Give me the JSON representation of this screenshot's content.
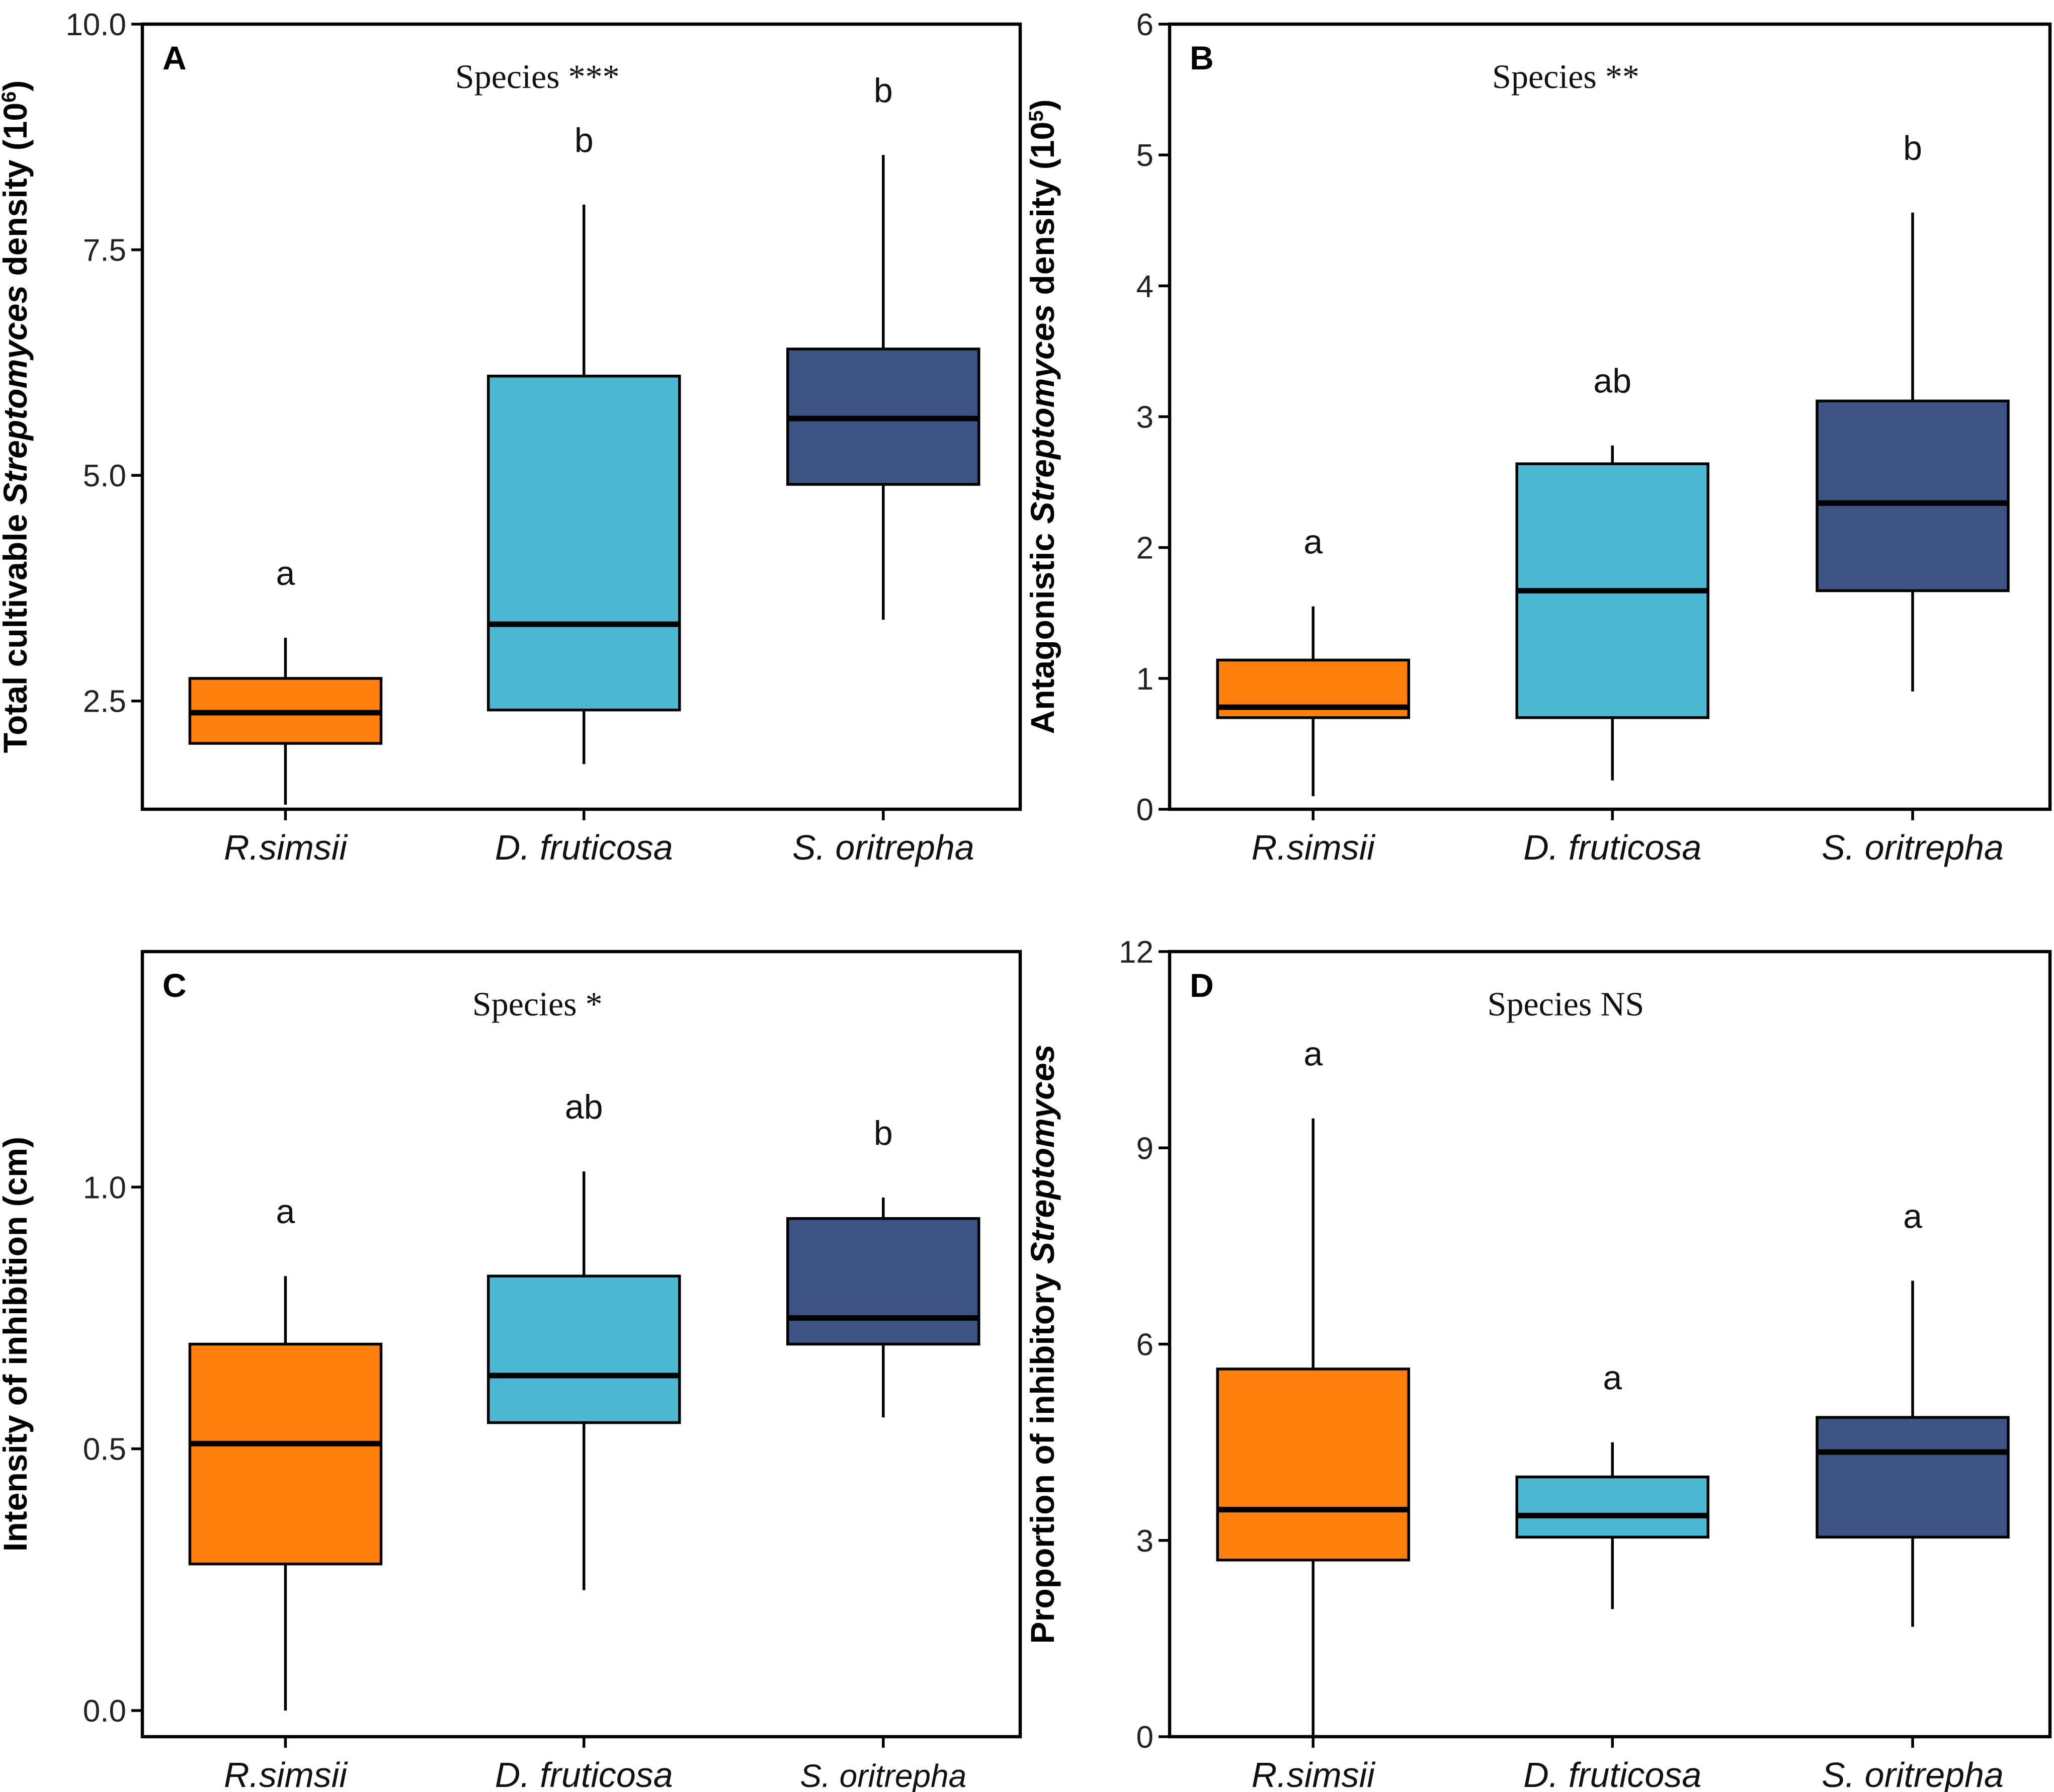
{
  "chart_data": [
    {
      "type": "boxplot",
      "panel": "A",
      "title": "Species ***",
      "ylabel_parts": [
        "Total cultivable ",
        "Streptomyces",
        " density (10",
        "6",
        ")"
      ],
      "ylim": [
        1.3,
        10.0
      ],
      "yticks": [
        {
          "value": 2.5,
          "label": "2.5"
        },
        {
          "value": 5.0,
          "label": "5.0"
        },
        {
          "value": 7.5,
          "label": "7.5"
        },
        {
          "value": 10.0,
          "label": "10.0"
        }
      ],
      "categories": [
        "R.simsii",
        "D. fruticosa",
        "S. oritrepha"
      ],
      "boxes": [
        {
          "category": "R.simsii",
          "min": 1.35,
          "q1": 2.03,
          "median": 2.37,
          "q3": 2.75,
          "max": 3.2,
          "letter": "a",
          "color": "#FF7F0E"
        },
        {
          "category": "D. fruticosa",
          "min": 1.8,
          "q1": 2.4,
          "median": 3.35,
          "q3": 6.1,
          "max": 8.0,
          "letter": "b",
          "color": "#4BB8D4"
        },
        {
          "category": "S. oritrepha",
          "min": 3.4,
          "q1": 4.9,
          "median": 5.63,
          "q3": 6.4,
          "max": 8.55,
          "letter": "b",
          "color": "#3C5384"
        }
      ]
    },
    {
      "type": "boxplot",
      "panel": "B",
      "title": "Species **",
      "ylabel_parts": [
        "Antagonistic ",
        "Streptomyces",
        " density (10",
        "5",
        ")"
      ],
      "ylim": [
        0,
        6
      ],
      "yticks": [
        {
          "value": 0,
          "label": "0"
        },
        {
          "value": 1,
          "label": "1"
        },
        {
          "value": 2,
          "label": "2"
        },
        {
          "value": 3,
          "label": "3"
        },
        {
          "value": 4,
          "label": "4"
        },
        {
          "value": 5,
          "label": "5"
        },
        {
          "value": 6,
          "label": "6"
        }
      ],
      "categories": [
        "R.simsii",
        "D. fruticosa",
        "S. oritrepha"
      ],
      "boxes": [
        {
          "category": "R.simsii",
          "min": 0.1,
          "q1": 0.7,
          "median": 0.78,
          "q3": 1.14,
          "max": 1.55,
          "letter": "a",
          "color": "#FF7F0E"
        },
        {
          "category": "D. fruticosa",
          "min": 0.22,
          "q1": 0.7,
          "median": 1.67,
          "q3": 2.64,
          "max": 2.78,
          "letter": "ab",
          "color": "#4BB8D4"
        },
        {
          "category": "S. oritrepha",
          "min": 0.9,
          "q1": 1.67,
          "median": 2.34,
          "q3": 3.12,
          "max": 4.56,
          "letter": "b",
          "color": "#3C5384"
        }
      ]
    },
    {
      "type": "boxplot",
      "panel": "C",
      "title": "Species *",
      "ylabel_parts": [
        "Intensity of inhibition (cm)"
      ],
      "ylim": [
        -0.05,
        1.45
      ],
      "yticks": [
        {
          "value": 0.0,
          "label": "0.0"
        },
        {
          "value": 0.5,
          "label": "0.5"
        },
        {
          "value": 1.0,
          "label": "1.0"
        }
      ],
      "categories": [
        "R.simsii",
        "D. fruticosa",
        "S. oritrepha"
      ],
      "boxes": [
        {
          "category": "R.simsii",
          "min": 0.0,
          "q1": 0.28,
          "median": 0.51,
          "q3": 0.7,
          "max": 0.83,
          "letter": "a",
          "color": "#FF7F0E"
        },
        {
          "category": "D. fruticosa",
          "min": 0.23,
          "q1": 0.55,
          "median": 0.64,
          "q3": 0.83,
          "max": 1.03,
          "letter": "ab",
          "color": "#4BB8D4"
        },
        {
          "category": "S. oritrepha",
          "min": 0.56,
          "q1": 0.7,
          "median": 0.75,
          "q3": 0.94,
          "max": 0.98,
          "letter": "b",
          "color": "#3C5384"
        }
      ]
    },
    {
      "type": "boxplot",
      "panel": "D",
      "title": "Species NS",
      "ylabel_parts": [
        "Proportion of inhibitory ",
        "Streptomyces"
      ],
      "ylim": [
        0,
        12
      ],
      "yticks": [
        {
          "value": 0,
          "label": "0"
        },
        {
          "value": 3,
          "label": "3"
        },
        {
          "value": 6,
          "label": "6"
        },
        {
          "value": 9,
          "label": "9"
        },
        {
          "value": 12,
          "label": "12"
        }
      ],
      "categories": [
        "R.simsii",
        "D. fruticosa",
        "S. oritrepha"
      ],
      "boxes": [
        {
          "category": "R.simsii",
          "min": 0.0,
          "q1": 2.7,
          "median": 3.47,
          "q3": 5.62,
          "max": 9.45,
          "letter": "a",
          "color": "#FF7F0E"
        },
        {
          "category": "D. fruticosa",
          "min": 1.95,
          "q1": 3.05,
          "median": 3.38,
          "q3": 3.97,
          "max": 4.5,
          "letter": "a",
          "color": "#4BB8D4"
        },
        {
          "category": "S. oritrepha",
          "min": 1.68,
          "q1": 3.05,
          "median": 4.35,
          "q3": 4.88,
          "max": 6.97,
          "letter": "a",
          "color": "#3C5384"
        }
      ]
    }
  ]
}
